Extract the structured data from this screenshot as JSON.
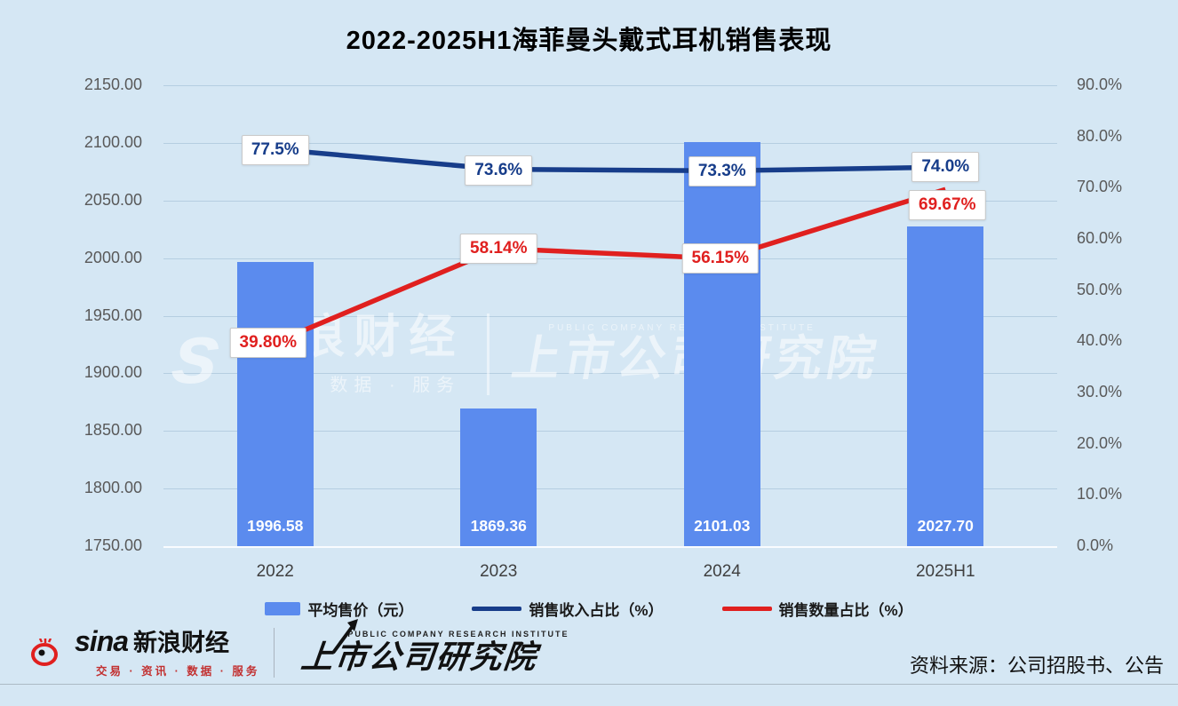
{
  "title": "2022-2025H1海菲曼头戴式耳机销售表现",
  "chart_data": {
    "type": "combo-bar-line",
    "categories": [
      "2022",
      "2023",
      "2024",
      "2025H1"
    ],
    "series": [
      {
        "name": "平均售价（元）",
        "type": "bar",
        "axis": "left",
        "values": [
          1996.58,
          1869.36,
          2101.03,
          2027.7
        ],
        "labels": [
          "1996.58",
          "1869.36",
          "2101.03",
          "2027.70"
        ]
      },
      {
        "name": "销售收入占比（%）",
        "type": "line",
        "axis": "right",
        "values": [
          77.5,
          73.6,
          73.3,
          74.0
        ],
        "labels": [
          "77.5%",
          "73.6%",
          "73.3%",
          "74.0%"
        ]
      },
      {
        "name": "销售数量占比（%）",
        "type": "line",
        "axis": "right",
        "values": [
          39.8,
          58.14,
          56.15,
          69.67
        ],
        "labels": [
          "39.80%",
          "58.14%",
          "56.15%",
          "69.67%"
        ]
      }
    ],
    "left_axis": {
      "min": 1750,
      "max": 2150,
      "step": 50,
      "ticks": [
        "2150.00",
        "2100.00",
        "2050.00",
        "2000.00",
        "1950.00",
        "1900.00",
        "1850.00",
        "1800.00",
        "1750.00"
      ]
    },
    "right_axis": {
      "min": 0,
      "max": 90,
      "step": 10,
      "ticks": [
        "90.0%",
        "80.0%",
        "70.0%",
        "60.0%",
        "50.0%",
        "40.0%",
        "30.0%",
        "20.0%",
        "10.0%",
        "0.0%"
      ]
    },
    "grid": true,
    "legend_position": "bottom"
  },
  "colors": {
    "background": "#d5e7f4",
    "bar": "#5b8bee",
    "revenue_line": "#173d8a",
    "quantity_line": "#e0201f"
  },
  "watermark": {
    "sina_script": "s",
    "brand": "新浪财经",
    "tagline": "资讯 · 数据 · 服务",
    "institute_en": "PUBLIC COMPANY RESEARCH INSTITUTE",
    "institute": "上市公司研究院"
  },
  "footer": {
    "sina_word": "sina",
    "sina_brand": "新浪财经",
    "sina_tagline": "交易 · 资讯 · 数据 · 服务",
    "institute_en": "PUBLIC COMPANY RESEARCH INSTITUTE",
    "institute": "上市公司研究院",
    "source": "资料来源：公司招股书、公告"
  }
}
